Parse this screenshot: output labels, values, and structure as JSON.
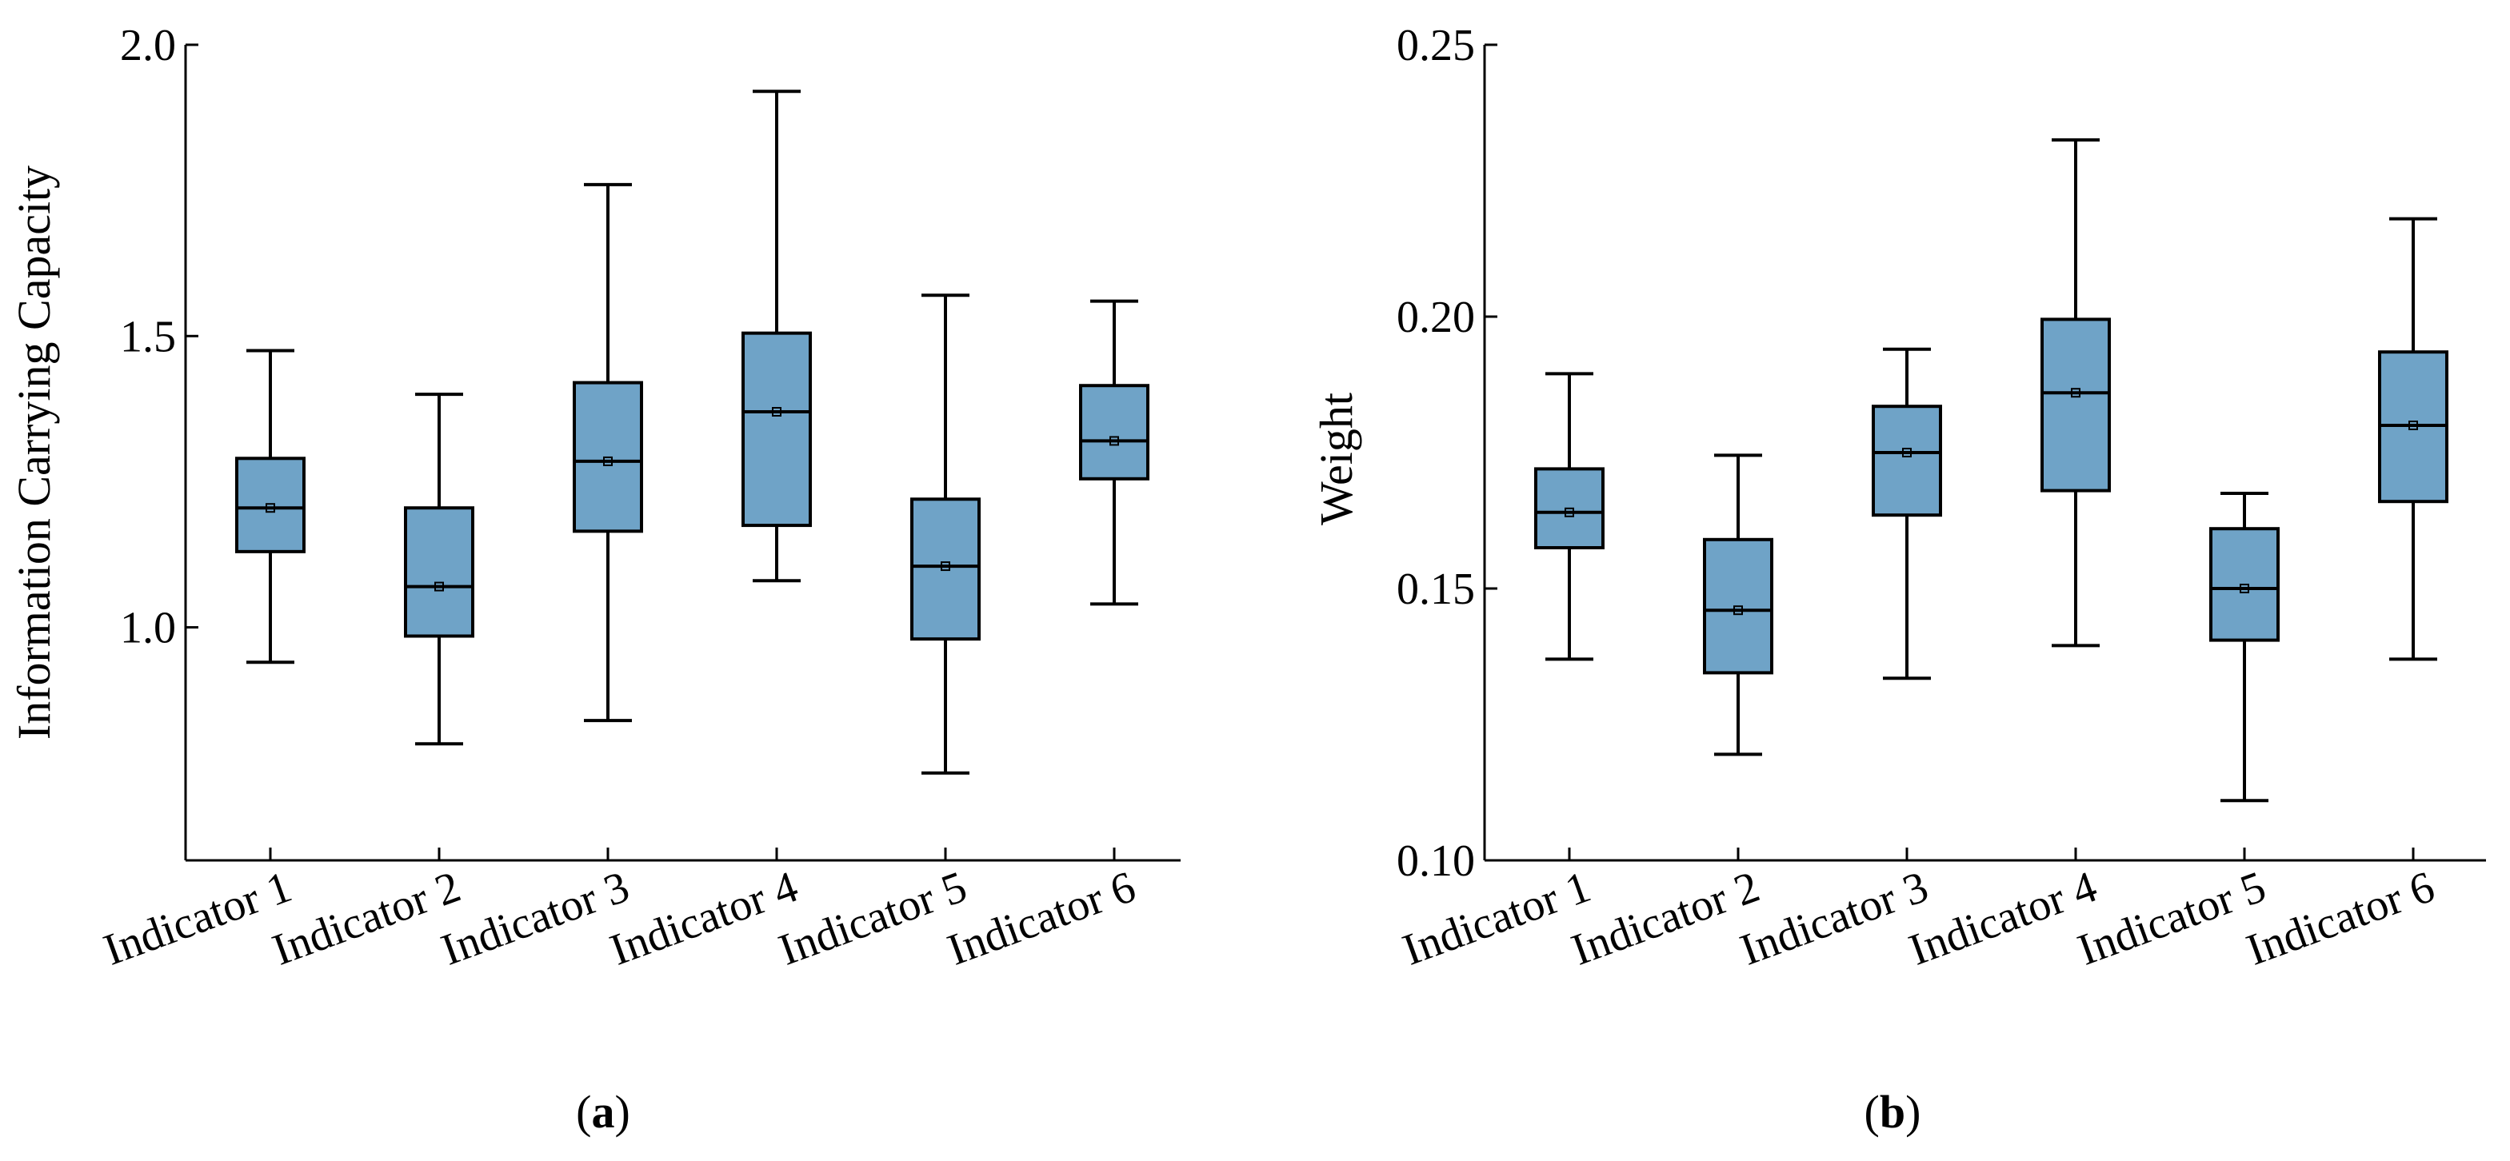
{
  "chart_data": [
    {
      "type": "box",
      "panel": "(a)",
      "panel_letter": "a",
      "xlabel": "",
      "ylabel": "Information Carrying Capacity",
      "ylim": [
        0.6,
        2.0
      ],
      "yticks": [
        1.0,
        1.5,
        2.0
      ],
      "ytick_labels": [
        "1.0",
        "1.5",
        "2.0"
      ],
      "box_color": "#6fa3c7",
      "categories": [
        "Indicator 1",
        "Indicator 2",
        "Indicator 3",
        "Indicator 4",
        "Indicator 5",
        "Indicator 6"
      ],
      "series": [
        {
          "name": "Indicator 1",
          "min": 0.94,
          "q1": 1.13,
          "median": 1.205,
          "mean": 1.205,
          "q3": 1.29,
          "max": 1.475
        },
        {
          "name": "Indicator 2",
          "min": 0.8,
          "q1": 0.985,
          "median": 1.07,
          "mean": 1.07,
          "q3": 1.205,
          "max": 1.4
        },
        {
          "name": "Indicator 3",
          "min": 0.84,
          "q1": 1.165,
          "median": 1.285,
          "mean": 1.285,
          "q3": 1.42,
          "max": 1.76
        },
        {
          "name": "Indicator 4",
          "min": 1.08,
          "q1": 1.175,
          "median": 1.37,
          "mean": 1.37,
          "q3": 1.505,
          "max": 1.92
        },
        {
          "name": "Indicator 5",
          "min": 0.75,
          "q1": 0.98,
          "median": 1.105,
          "mean": 1.105,
          "q3": 1.22,
          "max": 1.57
        },
        {
          "name": "Indicator 6",
          "min": 1.04,
          "q1": 1.255,
          "median": 1.32,
          "mean": 1.32,
          "q3": 1.415,
          "max": 1.56
        }
      ]
    },
    {
      "type": "box",
      "panel": "(b)",
      "panel_letter": "b",
      "xlabel": "",
      "ylabel": "Weight",
      "ylim": [
        0.1,
        0.25
      ],
      "yticks": [
        0.1,
        0.15,
        0.2,
        0.25
      ],
      "ytick_labels": [
        "0.10",
        "0.15",
        "0.20",
        "0.25"
      ],
      "box_color": "#6fa3c7",
      "categories": [
        "Indicator 1",
        "Indicator 2",
        "Indicator 3",
        "Indicator 4",
        "Indicator 5",
        "Indicator 6"
      ],
      "series": [
        {
          "name": "Indicator 1",
          "min": 0.137,
          "q1": 0.1575,
          "median": 0.164,
          "mean": 0.164,
          "q3": 0.172,
          "max": 0.1895
        },
        {
          "name": "Indicator 2",
          "min": 0.1195,
          "q1": 0.1345,
          "median": 0.146,
          "mean": 0.146,
          "q3": 0.159,
          "max": 0.1745
        },
        {
          "name": "Indicator 3",
          "min": 0.1335,
          "q1": 0.1635,
          "median": 0.175,
          "mean": 0.175,
          "q3": 0.1835,
          "max": 0.194
        },
        {
          "name": "Indicator 4",
          "min": 0.1395,
          "q1": 0.168,
          "median": 0.186,
          "mean": 0.186,
          "q3": 0.1995,
          "max": 0.2325
        },
        {
          "name": "Indicator 5",
          "min": 0.111,
          "q1": 0.1405,
          "median": 0.15,
          "mean": 0.15,
          "q3": 0.161,
          "max": 0.1675
        },
        {
          "name": "Indicator 6",
          "min": 0.137,
          "q1": 0.166,
          "median": 0.18,
          "mean": 0.18,
          "q3": 0.1935,
          "max": 0.218
        }
      ]
    }
  ]
}
